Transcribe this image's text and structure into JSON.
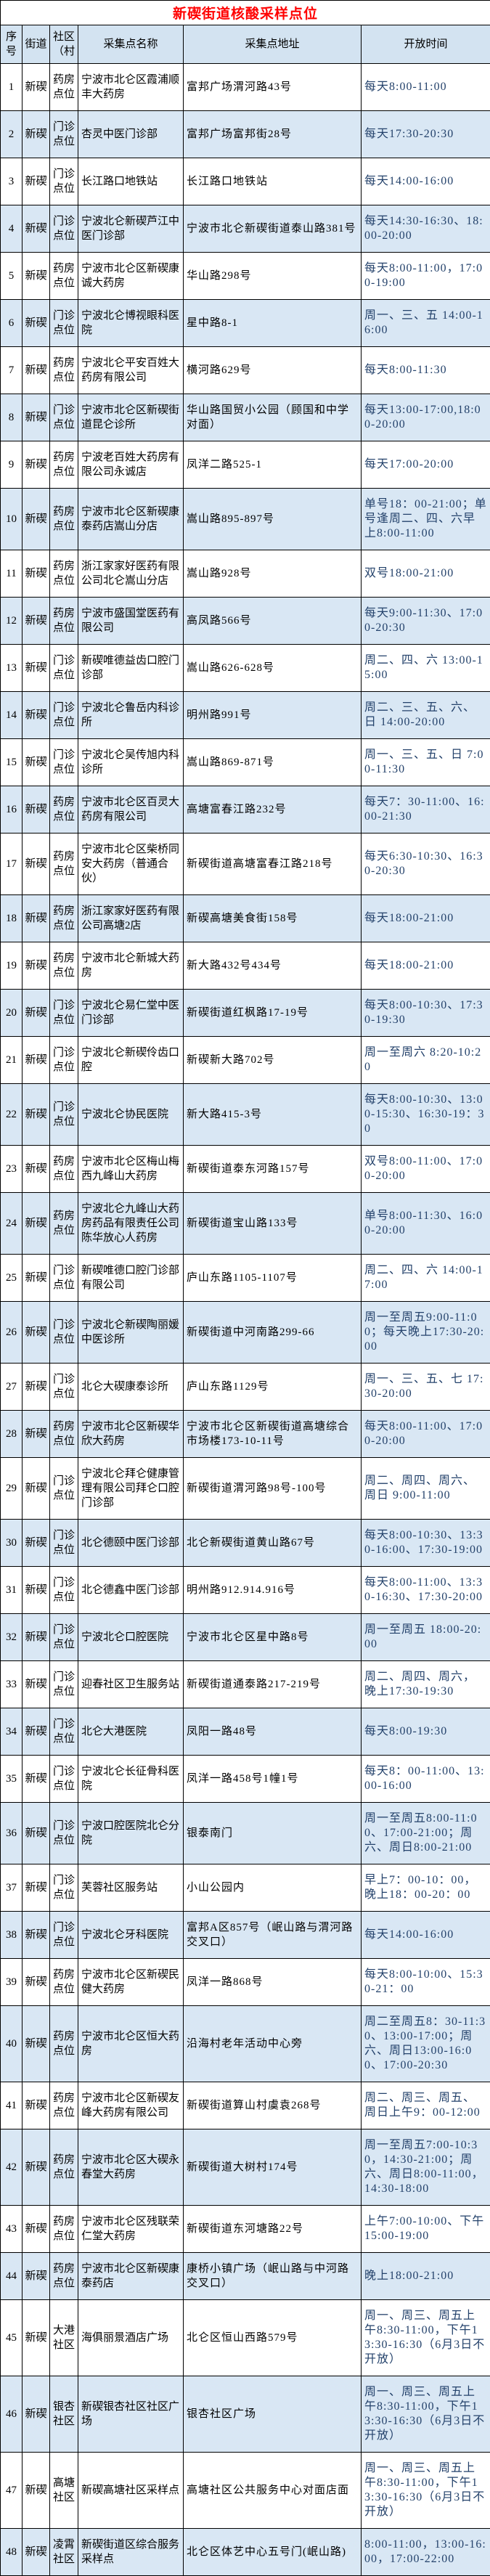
{
  "title": "新碶街道核酸采样点位",
  "table": {
    "headers": [
      "序号",
      "街道",
      "社区（村",
      "采集点名称",
      "采集点地址",
      "开放时间"
    ],
    "rows": [
      {
        "n": "1",
        "street": "新碶",
        "comm": "药房点位",
        "name": "宁波市北仑区霞浦顺丰大药房",
        "addr": "富邦广场渭河路43号",
        "time": "每天8:00-11:00"
      },
      {
        "n": "2",
        "street": "新碶",
        "comm": "门诊点位",
        "name": "杏灵中医门诊部",
        "addr": "富邦广场富邦街28号",
        "time": "每天17:30-20:30"
      },
      {
        "n": "3",
        "street": "新碶",
        "comm": "门诊点位",
        "name": "长江路口地铁站",
        "addr": "长江路口地铁站",
        "time": "每天14:00-16:00"
      },
      {
        "n": "4",
        "street": "新碶",
        "comm": "门诊点位",
        "name": "宁波北仑新碶芦江中医门诊部",
        "addr": "宁波市北仑新碶街道泰山路381号",
        "time": "每天14:30-16:30、18:00-20:00"
      },
      {
        "n": "5",
        "street": "新碶",
        "comm": "药房点位",
        "name": "宁波市北仑区新碶康诚大药房",
        "addr": "华山路298号",
        "time": "每天8:00-11:00，17:00-19:00"
      },
      {
        "n": "6",
        "street": "新碶",
        "comm": "门诊点位",
        "name": "宁波北仑博视眼科医院",
        "addr": "星中路8-1",
        "time": "周一、三、五 14:00-16:00"
      },
      {
        "n": "7",
        "street": "新碶",
        "comm": "药房点位",
        "name": "宁波北仑平安百姓大药房有限公司",
        "addr": "横河路629号",
        "time": "每天8:00-11:30"
      },
      {
        "n": "8",
        "street": "新碶",
        "comm": "门诊点位",
        "name": "宁波市北仑区新碶街道昆仑诊所",
        "addr": "华山路国贸小公园（顾国和中学对面）",
        "time": "每天13:00-17:00,18:00-20:00"
      },
      {
        "n": "9",
        "street": "新碶",
        "comm": "药房点位",
        "name": "宁波老百姓大药房有限公司永诚店",
        "addr": "凤洋二路525-1",
        "time": "每天17:00-20:00"
      },
      {
        "n": "10",
        "street": "新碶",
        "comm": "药房点位",
        "name": "宁波市北仑区新碶康泰药店嵩山分店",
        "addr": "嵩山路895-897号",
        "time": "单号18：00-21:00；单号逢周二、四、六早上8:00-11:00"
      },
      {
        "n": "11",
        "street": "新碶",
        "comm": "药房点位",
        "name": "浙江家家好医药有限公司北仑嵩山分店",
        "addr": "嵩山路928号",
        "time": "双号18:00-21:00"
      },
      {
        "n": "12",
        "street": "新碶",
        "comm": "药房点位",
        "name": "宁波市盛国堂医药有限公司",
        "addr": "高凤路566号",
        "time": "每天9:00-11:30、17:00-20:30"
      },
      {
        "n": "13",
        "street": "新碶",
        "comm": "门诊点位",
        "name": "新碶唯德益齿口腔门诊部",
        "addr": "嵩山路626-628号",
        "time": "周二、四、六 13:00-15:00"
      },
      {
        "n": "14",
        "street": "新碶",
        "comm": "门诊点位",
        "name": "宁波北仑鲁岳内科诊所",
        "addr": "明州路991号",
        "time": "周二、三、五、六、日 14:00-20:00"
      },
      {
        "n": "15",
        "street": "新碶",
        "comm": "门诊点位",
        "name": "宁波北仑吴传旭内科诊所",
        "addr": "嵩山路869-871号",
        "time": "周一、三、五、日 7:00-11:30"
      },
      {
        "n": "16",
        "street": "新碶",
        "comm": "药房点位",
        "name": "宁波市北仑区百灵大药房有限公司",
        "addr": "高塘富春江路232号",
        "time": "每天7：30-11:00、16:00-21:30"
      },
      {
        "n": "17",
        "street": "新碶",
        "comm": "药房点位",
        "name": "宁波市北仑区柴桥同安大药房（普通合伙）",
        "addr": "新碶街道高塘富春江路218号",
        "time": "每天6:30-10:30、16:30-20:30"
      },
      {
        "n": "18",
        "street": "新碶",
        "comm": "药房点位",
        "name": "浙江家家好医药有限公司高塘2店",
        "addr": "新碶高塘美食街158号",
        "time": "每天18:00-21:00"
      },
      {
        "n": "19",
        "street": "新碶",
        "comm": "药房点位",
        "name": "宁波市北仑新城大药房",
        "addr": "新大路432号434号",
        "time": "每天18:00-21:00"
      },
      {
        "n": "20",
        "street": "新碶",
        "comm": "门诊点位",
        "name": "宁波北仑易仁堂中医门诊部",
        "addr": "新碶街道红枫路17-19号",
        "time": "每天8:00-10:30、17:30-19:30"
      },
      {
        "n": "21",
        "street": "新碶",
        "comm": "门诊点位",
        "name": "宁波北仑新碶伶齿口腔",
        "addr": "新碶新大路702号",
        "time": "周一至周六 8:20-10:20"
      },
      {
        "n": "22",
        "street": "新碶",
        "comm": "门诊点位",
        "name": "宁波北仑协民医院",
        "addr": "新大路415-3号",
        "time": "每天8:00-10:30、13:00-15:30、16:30-19：30"
      },
      {
        "n": "23",
        "street": "新碶",
        "comm": "药房点位",
        "name": "宁波市北仑区梅山梅西九峰山大药房",
        "addr": "新碶街道泰东河路157号",
        "time": "双号8:00-11:00、17:00-20:00"
      },
      {
        "n": "24",
        "street": "新碶",
        "comm": "药房点位",
        "name": "宁波北仑九峰山大药房药品有限责任公司陈华放心人药房",
        "addr": "新碶街道宝山路133号",
        "time": "单号8:00-11:30、16:00-20:00"
      },
      {
        "n": "25",
        "street": "新碶",
        "comm": "门诊点位",
        "name": "新碶唯德口腔门诊部有限公司",
        "addr": "庐山东路1105-1107号",
        "time": "周二、四、六 14:00-17:00"
      },
      {
        "n": "26",
        "street": "新碶",
        "comm": "门诊点位",
        "name": "宁波北仑新碶陶丽媛中医诊所",
        "addr": "新碶街道中河南路299-66",
        "time": "周一至周五9:00-11:00；每天晚上17:30-20:00"
      },
      {
        "n": "27",
        "street": "新碶",
        "comm": "门诊点位",
        "name": "北仑大碶康泰诊所",
        "addr": "庐山东路1129号",
        "time": "周一、三、五、七 17:30-20:00"
      },
      {
        "n": "28",
        "street": "新碶",
        "comm": "药房点位",
        "name": "宁波市北仑区新碶华欣大药房",
        "addr": "宁波市北仑区新碶街道高塘综合市场楼173-10-11号",
        "time": "每天8:00-11:00、17:00-20:00"
      },
      {
        "n": "29",
        "street": "新碶",
        "comm": "门诊点位",
        "name": "宁波北仑拜仑健康管理有限公司拜仑口腔门诊部",
        "addr": "新碶街道渭河路98号-100号",
        "time": "周二、周四、周六、周日 9:00-11:00"
      },
      {
        "n": "30",
        "street": "新碶",
        "comm": "门诊点位",
        "name": "北仑德颐中医门诊部",
        "addr": "北仑新碶街道黄山路67号",
        "time": "每天8:00-10:30、13:30-16:00、17:30-19:00"
      },
      {
        "n": "31",
        "street": "新碶",
        "comm": "门诊点位",
        "name": "北仑德鑫中医门诊部",
        "addr": "明州路912.914.916号",
        "time": "每天8:00-11:00、13:30-16:30、17:30-20:00"
      },
      {
        "n": "32",
        "street": "新碶",
        "comm": "门诊点位",
        "name": "宁波北仑口腔医院",
        "addr": "宁波市北仑区星中路8号",
        "time": "周一至周五 18:00-20:00"
      },
      {
        "n": "33",
        "street": "新碶",
        "comm": "门诊点位",
        "name": "迎春社区卫生服务站",
        "addr": "新碶街道通泰路217-219号",
        "time": "周二、周四、周六，晚上17:30-19:30"
      },
      {
        "n": "34",
        "street": "新碶",
        "comm": "门诊点位",
        "name": "北仑大港医院",
        "addr": "凤阳一路48号",
        "time": "每天8:00-19:30"
      },
      {
        "n": "35",
        "street": "新碶",
        "comm": "门诊点位",
        "name": "宁波北仑长征骨科医院",
        "addr": "凤洋一路458号1幢1号",
        "time": "每天8：00-11:00、13:00-16:00"
      },
      {
        "n": "36",
        "street": "新碶",
        "comm": "门诊点位",
        "name": "宁波口腔医院北仑分院",
        "addr": "银泰南门",
        "time": "周一至周五8:00-11:00、17:00-21:00；周六、周日8:00-21:00"
      },
      {
        "n": "37",
        "street": "新碶",
        "comm": "门诊点位",
        "name": "芙蓉社区服务站",
        "addr": "小山公园内",
        "time": "早上7：00-10：00，晚上18：00-20：00"
      },
      {
        "n": "38",
        "street": "新碶",
        "comm": "门诊点位",
        "name": "宁波北仑牙科医院",
        "addr": "富邦A区857号（岷山路与渭河路交叉口）",
        "time": "每天14:00-16:00"
      },
      {
        "n": "39",
        "street": "新碶",
        "comm": "药房点位",
        "name": "宁波市北仑区新碶民健大药房",
        "addr": "凤洋一路868号",
        "time": "每天8:00-10:00、15:30-21：00"
      },
      {
        "n": "40",
        "street": "新碶",
        "comm": "药房点位",
        "name": "宁波市北仑区恒大药房",
        "addr": "沿海村老年活动中心旁",
        "time": "周二至周五8：30-11:30、13:00-17:00；周六、周日13:00-16:00、17:00-20:30"
      },
      {
        "n": "41",
        "street": "新碶",
        "comm": "药房点位",
        "name": "宁波市北仑区新碶友峰大药房有限公司",
        "addr": "新碶街道算山村虞袁268号",
        "time": "周二、周三、周五、周日上午9：00-12:00"
      },
      {
        "n": "42",
        "street": "新碶",
        "comm": "药房点位",
        "name": "宁波市北仑区大碶永春堂大药房",
        "addr": "新碶街道大树村174号",
        "time": "周一至周五7:00-10:30，14:30-21:00；周六、周日8:00-11:00，14:30-18:00"
      },
      {
        "n": "43",
        "street": "新碶",
        "comm": "药房点位",
        "name": "宁波市北仑区残联荣仁堂大药房",
        "addr": "新碶街道东河塘路22号",
        "time": "上午7:00-10:00、下午15:00-19:00"
      },
      {
        "n": "44",
        "street": "新碶",
        "comm": "药房点位",
        "name": "宁波市北仑区新碶康泰药店",
        "addr": "康桥小镇广场（岷山路与中河路交叉口）",
        "time": "晚上18:00-21:00"
      },
      {
        "n": "45",
        "street": "新碶",
        "comm": "大港社区",
        "name": "海俱丽景酒店广场",
        "addr": "北仑区恒山西路579号",
        "time": "周一、周三、周五上午8:30-11:00，下午13:30-16:30（6月3日不开放）"
      },
      {
        "n": "46",
        "street": "新碶",
        "comm": "银杏社区",
        "name": "新碶银杏社区社区广场",
        "addr": "银杏社区广场",
        "time": "周一、周三、周五上午8:30-11:00，下午13:30-16:30（6月3日不开放）"
      },
      {
        "n": "47",
        "street": "新碶",
        "comm": "高塘社区",
        "name": "新碶高塘社区采样点",
        "addr": "高塘社区公共服务中心对面店面",
        "time": "周一、周三、周五上午8:30-11:00，下午13:30-16:30（6月3日不开放）"
      },
      {
        "n": "48",
        "street": "新碶",
        "comm": "凌霄社区",
        "name": "新碶街道区综合服务采样点",
        "addr": "北仑区体艺中心五号门(岷山路)",
        "time": "8:00-11:00，13:00-16:00，17:00-22:00"
      }
    ]
  },
  "colors": {
    "title_red": "#ff0000",
    "header_bg": "#d3e3f1",
    "zebra_row_bg": "#d9e7f4",
    "time_text": "#24426b",
    "border": "#000000"
  }
}
